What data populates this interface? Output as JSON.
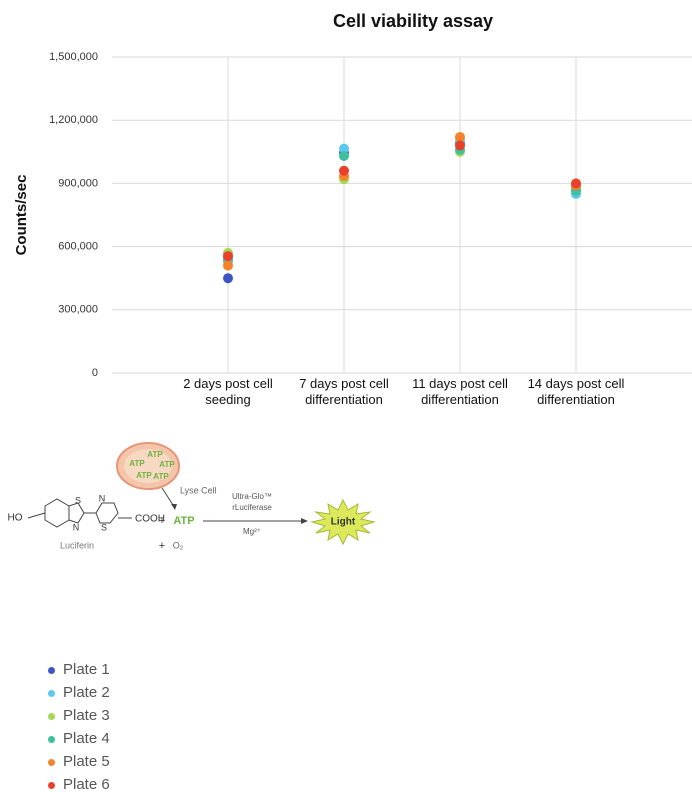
{
  "chart_data": {
    "type": "scatter",
    "title": "Cell viability assay",
    "y_label": "Counts/sec",
    "categories": [
      "2 days post cell seeding",
      "7 days post cell differentiation",
      "11 days post cell differentiation",
      "14 days post cell differentiation"
    ],
    "series": [
      {
        "name": "Plate 1",
        "color": "#3d55c4",
        "values": [
          450000,
          1045000,
          1090000,
          870000
        ]
      },
      {
        "name": "Plate 2",
        "color": "#5bc8ef",
        "values": [
          530000,
          1065000,
          1100000,
          850000
        ]
      },
      {
        "name": "Plate 3",
        "color": "#a6d854",
        "values": [
          570000,
          920000,
          1050000,
          880000
        ]
      },
      {
        "name": "Plate 4",
        "color": "#3fbfa0",
        "values": [
          540000,
          1030000,
          1060000,
          865000
        ]
      },
      {
        "name": "Plate 5",
        "color": "#f5822a",
        "values": [
          510000,
          935000,
          1120000,
          890000
        ]
      },
      {
        "name": "Plate 6",
        "color": "#e8402a",
        "values": [
          555000,
          960000,
          1080000,
          900000
        ]
      }
    ],
    "ylim": [
      0,
      1500000
    ],
    "yticks": [
      0,
      {
        "value": 300000,
        "label": "300,000"
      },
      {
        "value": 600000,
        "label": "600,000"
      },
      {
        "value": 900000,
        "label": "900,000"
      },
      {
        "value": 1200000,
        "label": "1,200,000"
      },
      {
        "value": 1500000,
        "label": "1,500,000"
      }
    ],
    "grid": true
  },
  "diagram": {
    "cell_atp": [
      "ATP",
      "ATP",
      "ATP",
      "ATP",
      "ATP"
    ],
    "lyse": "Lyse Cell",
    "plus": [
      "+",
      "+"
    ],
    "atp": "ATP",
    "o2": "O₂",
    "enzyme": [
      "Ultra-Glo™",
      "rLuciferase"
    ],
    "cofactor": "Mg²⁺",
    "light": "Light",
    "ho": "HO",
    "atoms": [
      "S",
      "N",
      "N",
      "S"
    ],
    "cooh": "COOH",
    "luciferin": "Luciferin"
  }
}
